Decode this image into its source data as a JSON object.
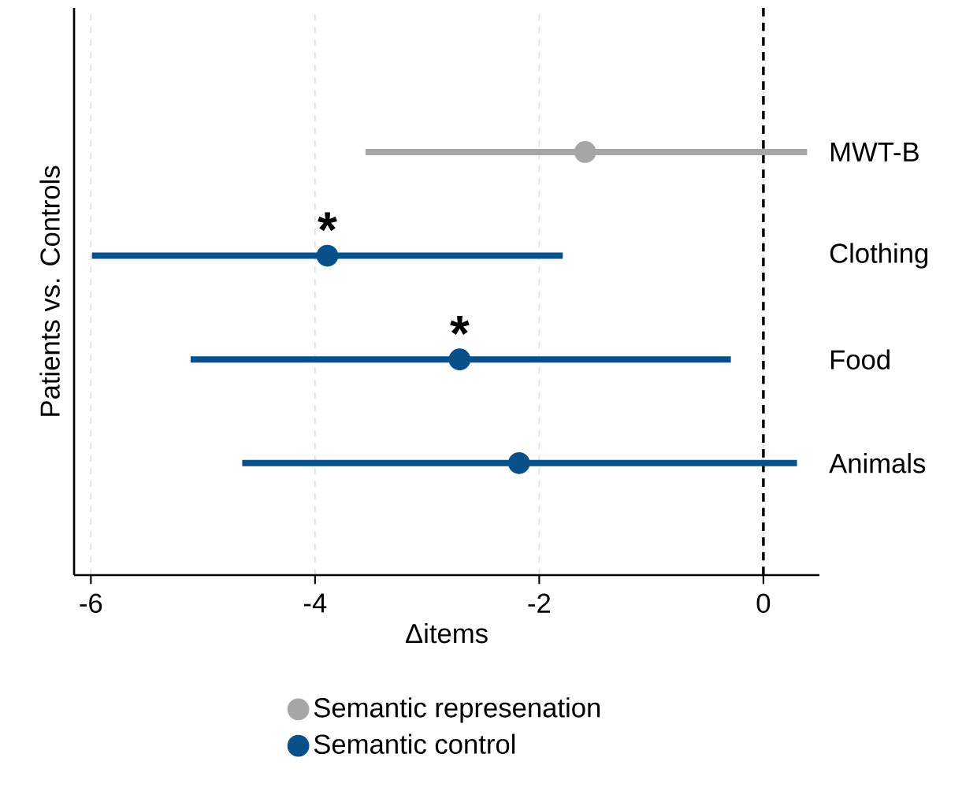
{
  "chart_data": {
    "type": "scatter",
    "orientation": "horizontal",
    "ylabel": "Patients vs. Controls",
    "xlabel": "Δitems",
    "categories": [
      "MWT-B",
      "Clothing",
      "Food",
      "Animals"
    ],
    "series": [
      {
        "name": "Semantic represenation",
        "color": "#a6a6a6",
        "values": [
          -1.59,
          null,
          null,
          null
        ],
        "errors": [
          [
            -3.55,
            0.39
          ],
          null,
          null,
          null
        ]
      },
      {
        "name": "Semantic control",
        "color": "#08508a",
        "values": [
          null,
          -3.89,
          -2.71,
          -2.18
        ],
        "errors": [
          null,
          [
            -5.99,
            -1.79
          ],
          [
            -5.11,
            -0.29
          ],
          [
            -4.65,
            0.3
          ]
        ]
      }
    ],
    "xlim": [
      -6.15,
      0.5
    ],
    "xticks": [
      -6,
      -4,
      -2,
      0
    ],
    "grid": "x",
    "legend": "bottom",
    "ref_lines": [
      {
        "axis": "x",
        "value": 0,
        "color": "#000000",
        "line_style": "dashed"
      }
    ],
    "annotations": [
      "*",
      "*"
    ]
  }
}
